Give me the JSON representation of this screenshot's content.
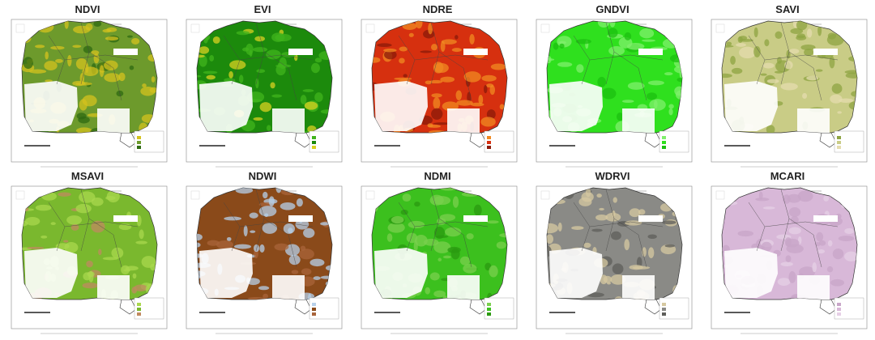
{
  "panels": [
    {
      "title": "NDVI"
    },
    {
      "title": "EVI"
    },
    {
      "title": "NDRE"
    },
    {
      "title": "GNDVI"
    },
    {
      "title": "SAVI"
    },
    {
      "title": "MSAVI"
    },
    {
      "title": "NDWI"
    },
    {
      "title": "NDMI"
    },
    {
      "title": "WDRVI"
    },
    {
      "title": "MCARI"
    }
  ]
}
